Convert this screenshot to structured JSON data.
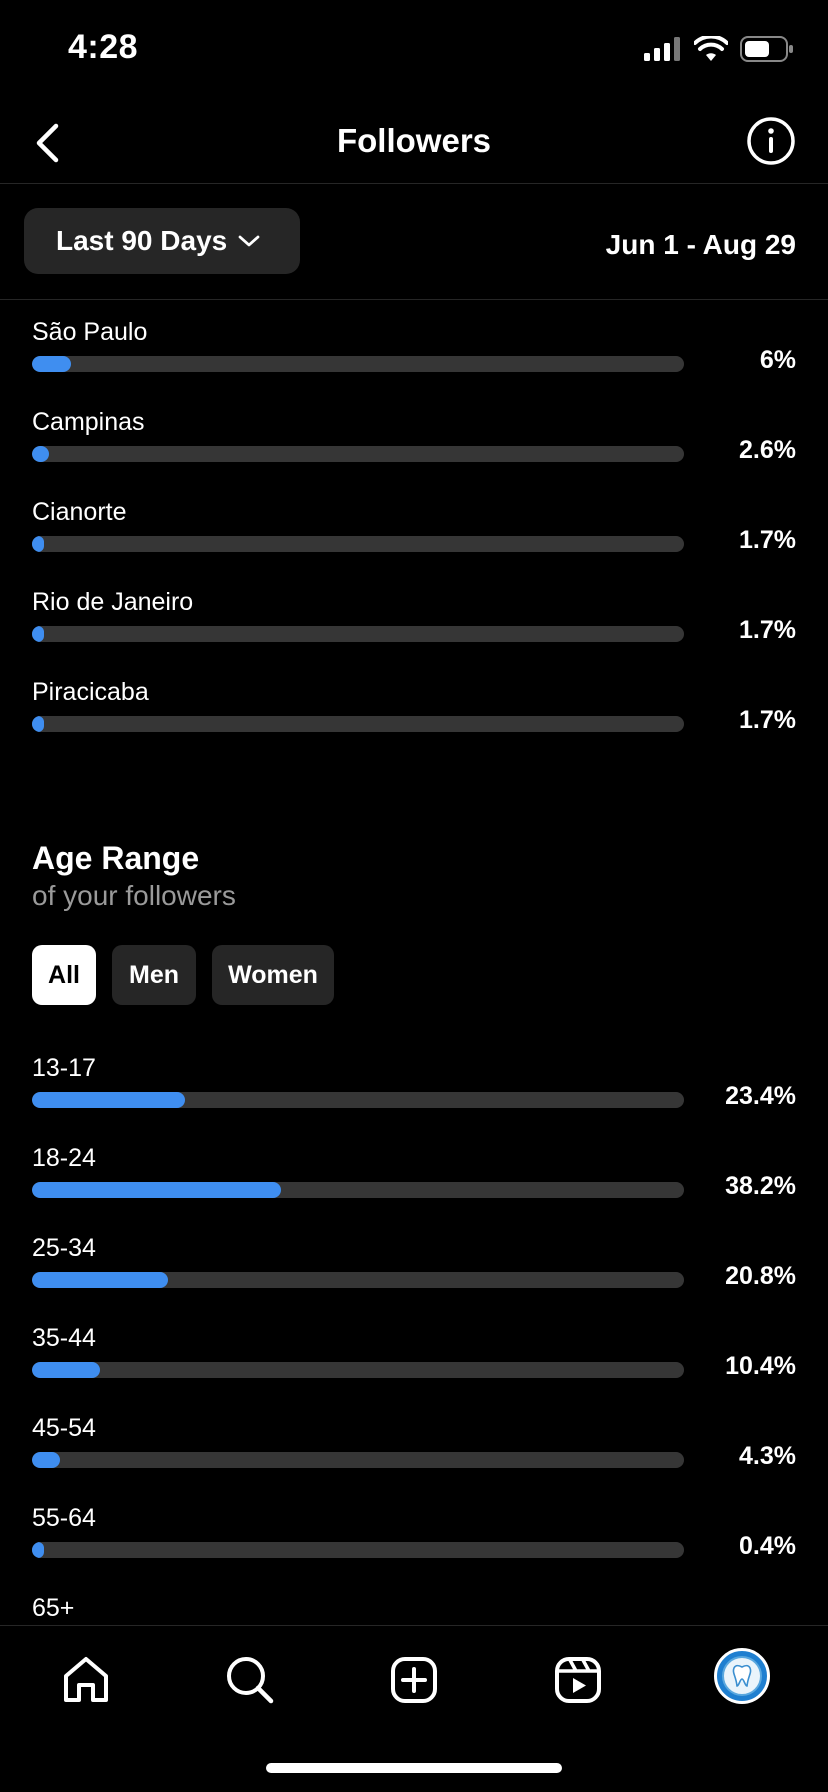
{
  "status": {
    "time": "4:28"
  },
  "header": {
    "title": "Followers"
  },
  "filter": {
    "range_label": "Last 90 Days",
    "date_range": "Jun 1 - Aug 29"
  },
  "cities": [
    {
      "label": "São Paulo",
      "value": "6%",
      "percent": 6
    },
    {
      "label": "Campinas",
      "value": "2.6%",
      "percent": 2.6
    },
    {
      "label": "Cianorte",
      "value": "1.7%",
      "percent": 1.7
    },
    {
      "label": "Rio de Janeiro",
      "value": "1.7%",
      "percent": 1.7
    },
    {
      "label": "Piracicaba",
      "value": "1.7%",
      "percent": 1.7
    }
  ],
  "age_section": {
    "title": "Age Range",
    "subtitle": "of your followers",
    "tabs": [
      {
        "label": "All",
        "active": true
      },
      {
        "label": "Men",
        "active": false
      },
      {
        "label": "Women",
        "active": false
      }
    ],
    "items": [
      {
        "label": "13-17",
        "value": "23.4%",
        "percent": 23.4
      },
      {
        "label": "18-24",
        "value": "38.2%",
        "percent": 38.2
      },
      {
        "label": "25-34",
        "value": "20.8%",
        "percent": 20.8
      },
      {
        "label": "35-44",
        "value": "10.4%",
        "percent": 10.4
      },
      {
        "label": "45-54",
        "value": "4.3%",
        "percent": 4.3
      },
      {
        "label": "55-64",
        "value": "0.4%",
        "percent": 0.4
      },
      {
        "label": "65+",
        "value": "",
        "percent": 0
      }
    ]
  },
  "colors": {
    "bar_fill": "#3f8ef0",
    "bar_track": "#363636",
    "chip_bg": "#262626"
  },
  "bottom_nav": {
    "items": [
      {
        "icon": "home-icon"
      },
      {
        "icon": "search-icon"
      },
      {
        "icon": "create-icon"
      },
      {
        "icon": "reels-icon"
      },
      {
        "icon": "profile-avatar"
      }
    ]
  }
}
